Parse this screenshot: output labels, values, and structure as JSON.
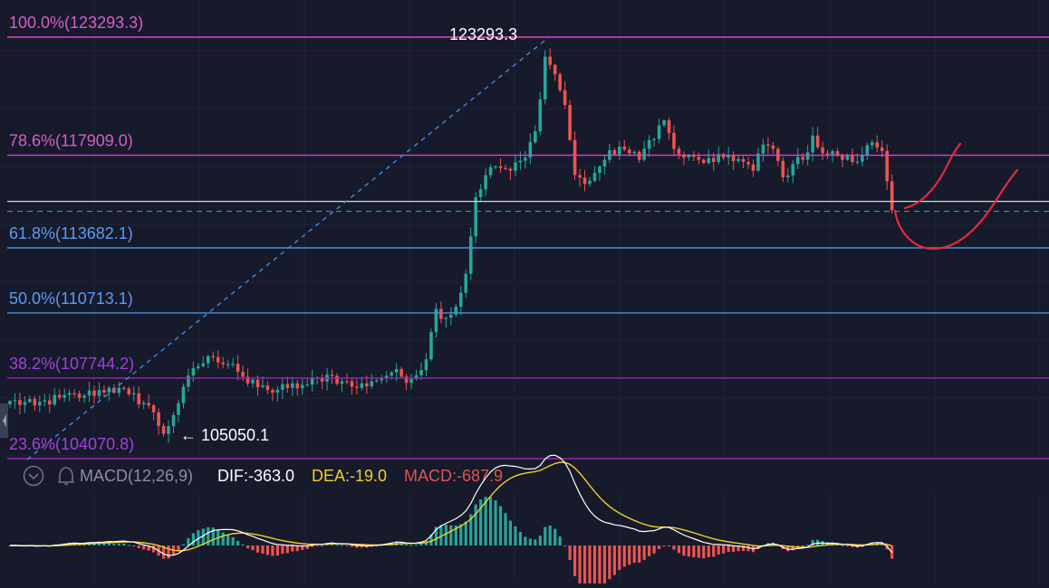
{
  "colors": {
    "background": "#161a2b",
    "grid": "#1f2438",
    "up": "#26a69a",
    "down": "#ef5350",
    "fib_top": "#e040c8",
    "fib_786": "#e040c8",
    "fib_618": "#4a90e2",
    "fib_500": "#4a90e2",
    "fib_382": "#9c27b0",
    "fib_236": "#9c27b0",
    "label_fib_top": "#d65ec7",
    "label_fib_786": "#d65ec7",
    "label_fib_618": "#5b9cf0",
    "label_fib_500": "#5b9cf0",
    "label_fib_382": "#a43fe0",
    "label_fib_236": "#a43fe0",
    "trend_line": "#3a8ee6",
    "price_line": "#d8d8d8",
    "dashed_price": "#26a69a",
    "drawing": "#e52b3a",
    "dif_line": "#ffffff",
    "dea_line": "#f0d02a",
    "macd_hist_up": "#26a69a",
    "macd_hist_down": "#ef5350",
    "indicator_label": "#8a8fa3",
    "dif_text": "#ffffff",
    "dea_text": "#f0d02a",
    "macd_text": "#e05555"
  },
  "chart_data": {
    "type": "candlestick",
    "title": "",
    "ylim": [
      103500,
      124700
    ],
    "fib_levels": [
      {
        "id": "top",
        "label": "100.0%(123293.3)",
        "price": 123293.3
      },
      {
        "id": "786",
        "label": "78.6%(117909.0)",
        "price": 117909.0
      },
      {
        "id": "618",
        "label": "61.8%(113682.1)",
        "price": 113682.1
      },
      {
        "id": "500",
        "label": "50.0%(110713.1)",
        "price": 110713.1
      },
      {
        "id": "382",
        "label": "38.2%(107744.2)",
        "price": 107744.2
      },
      {
        "id": "236",
        "label": "23.6%(104070.8)",
        "price": 104070.8
      }
    ],
    "annotations": {
      "high_label": "123293.3",
      "high_price": 123293.3,
      "low_label": "← 105050.1",
      "low_price": 105050.1
    },
    "current_price_line": 115800,
    "dashed_price_line": 115350,
    "candles_anchor_closes": [
      [
        0,
        106700
      ],
      [
        5,
        106500
      ],
      [
        10,
        106850
      ],
      [
        15,
        106950
      ],
      [
        20,
        107300
      ],
      [
        24,
        107000
      ],
      [
        28,
        106500
      ],
      [
        31,
        105200
      ],
      [
        34,
        106600
      ],
      [
        37,
        108200
      ],
      [
        41,
        108700
      ],
      [
        45,
        108400
      ],
      [
        48,
        107500
      ],
      [
        52,
        107200
      ],
      [
        56,
        107300
      ],
      [
        60,
        107450
      ],
      [
        64,
        107900
      ],
      [
        67,
        107600
      ],
      [
        70,
        107300
      ],
      [
        73,
        107600
      ],
      [
        77,
        108000
      ],
      [
        81,
        107700
      ],
      [
        84,
        108600
      ],
      [
        86,
        110900
      ],
      [
        88,
        110500
      ],
      [
        90,
        111000
      ],
      [
        92,
        112500
      ],
      [
        94,
        116000
      ],
      [
        96,
        117000
      ],
      [
        98,
        117400
      ],
      [
        101,
        117200
      ],
      [
        104,
        117800
      ],
      [
        106,
        119000
      ],
      [
        108,
        122400
      ],
      [
        110,
        121600
      ],
      [
        112,
        120200
      ],
      [
        114,
        117000
      ],
      [
        116,
        116600
      ],
      [
        118,
        117100
      ],
      [
        120,
        117700
      ],
      [
        123,
        118300
      ],
      [
        125,
        118000
      ],
      [
        127,
        117700
      ],
      [
        129,
        118600
      ],
      [
        132,
        119500
      ],
      [
        134,
        118200
      ],
      [
        136,
        117800
      ],
      [
        139,
        117700
      ],
      [
        142,
        117600
      ],
      [
        145,
        117900
      ],
      [
        148,
        117600
      ],
      [
        150,
        117200
      ],
      [
        152,
        118400
      ],
      [
        154,
        118200
      ],
      [
        156,
        116900
      ],
      [
        158,
        117500
      ],
      [
        160,
        117700
      ],
      [
        162,
        118800
      ],
      [
        164,
        118000
      ],
      [
        167,
        117900
      ],
      [
        170,
        117600
      ],
      [
        172,
        117900
      ],
      [
        174,
        118500
      ],
      [
        176,
        118100
      ],
      [
        178,
        115400
      ]
    ],
    "macd": {
      "label": "MACD(12,26,9)",
      "dif_label": "DIF:-363.0",
      "dea_label": "DEA:-19.0",
      "macd_label": "MACD:-687.9",
      "dif": -363.0,
      "dea": -19.0,
      "macd": -687.9
    }
  }
}
